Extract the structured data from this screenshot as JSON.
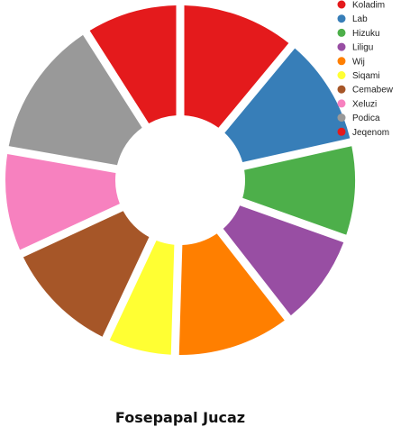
{
  "chart_data": {
    "type": "pie",
    "style": "exploded-donut",
    "title": "Fosepapal Jucaz",
    "legend_position": "top-right",
    "slices": [
      {
        "label": "Koladim",
        "value": 10.5,
        "color": "#e41a1c"
      },
      {
        "label": "Lab",
        "value": 10.0,
        "color": "#377eb8"
      },
      {
        "label": "Hizuku",
        "value": 8.5,
        "color": "#4daf4a"
      },
      {
        "label": "Liligu",
        "value": 8.6,
        "color": "#984ea3"
      },
      {
        "label": "Wij",
        "value": 10.5,
        "color": "#ff7f00"
      },
      {
        "label": "Siqami",
        "value": 6.2,
        "color": "#ffff33"
      },
      {
        "label": "Cemabew",
        "value": 10.6,
        "color": "#a65628"
      },
      {
        "label": "Xeluzi",
        "value": 9.2,
        "color": "#f781bf"
      },
      {
        "label": "Podica",
        "value": 12.6,
        "color": "#999999"
      },
      {
        "label": "Jeqenom",
        "value": 8.6,
        "color": "#e41a1c"
      }
    ]
  }
}
